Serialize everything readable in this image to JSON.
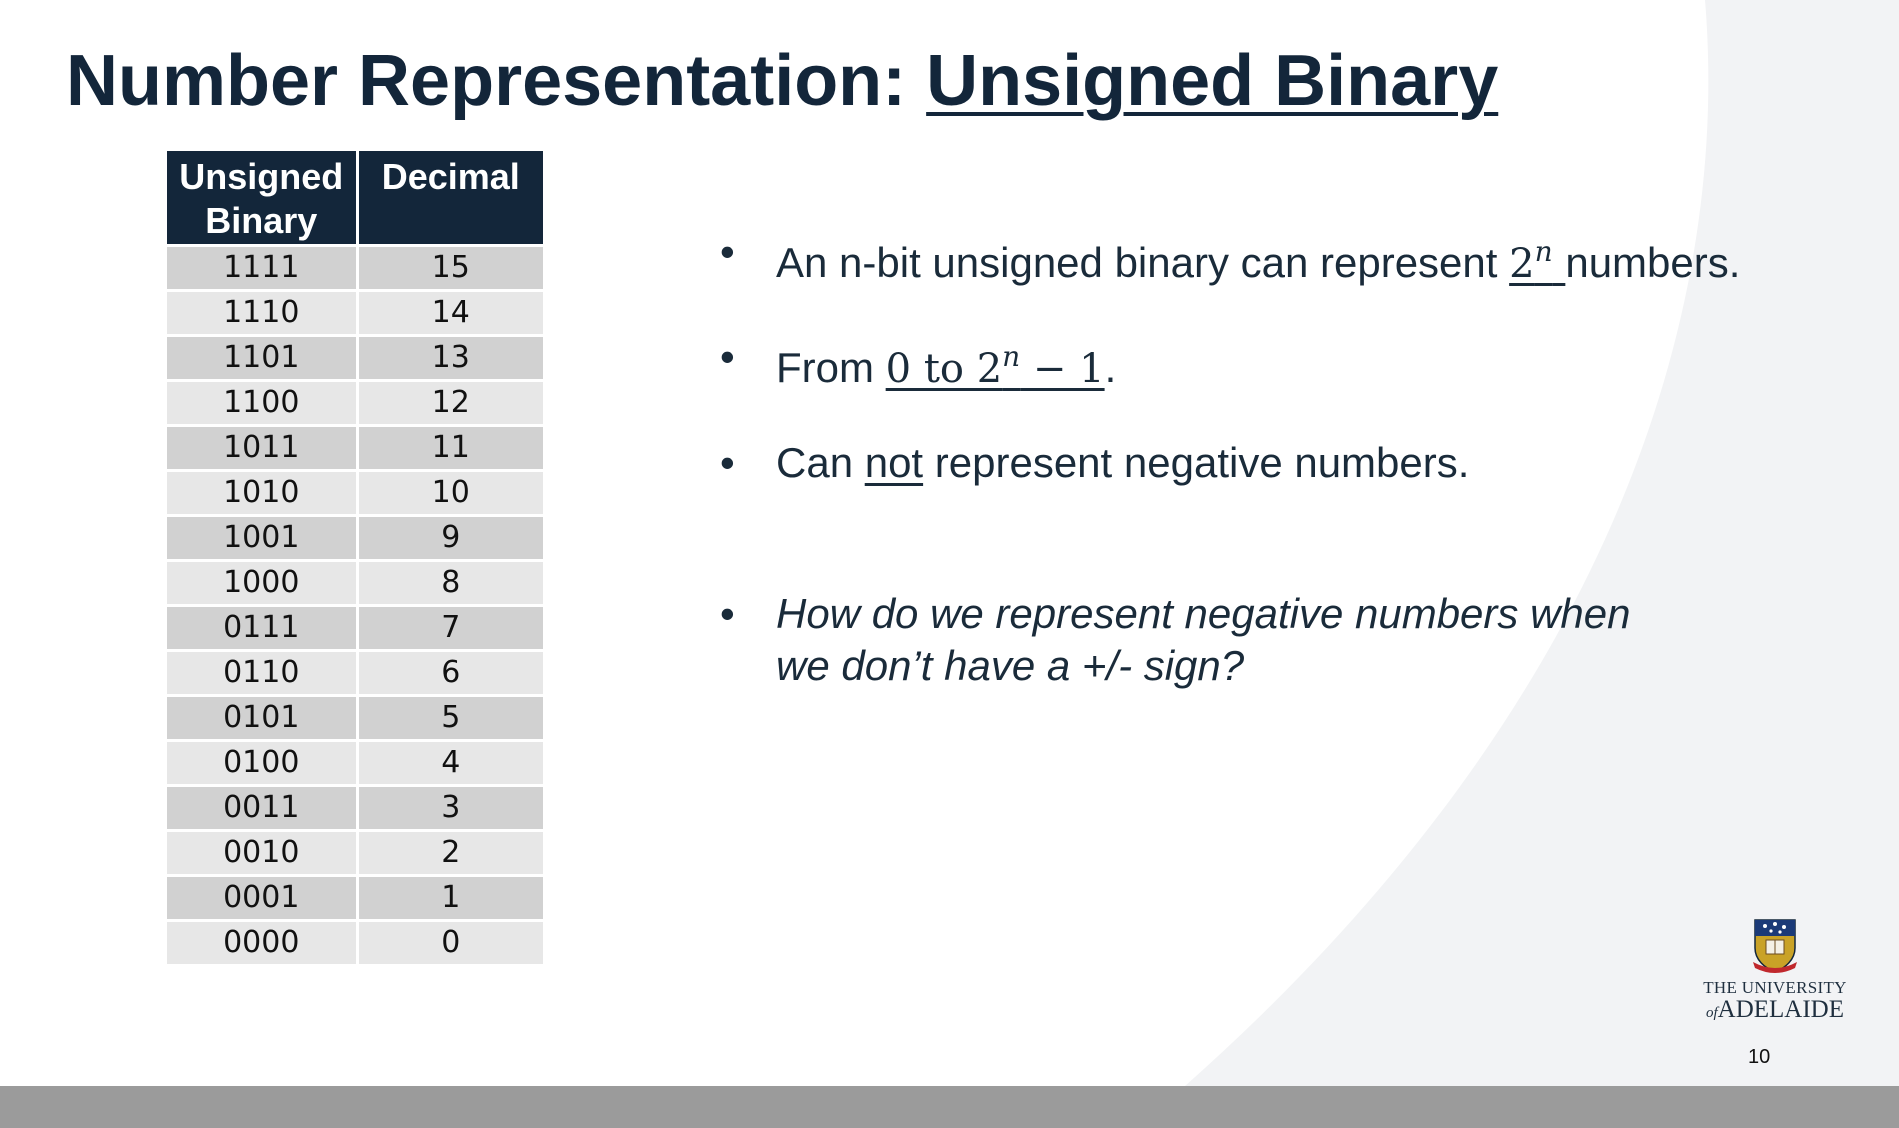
{
  "slide": {
    "title_main": "Number Representation: ",
    "title_underlined": "Unsigned Binary",
    "page_number": "10"
  },
  "table": {
    "headers": [
      "Unsigned Binary",
      "Decimal"
    ],
    "rows": [
      [
        "1111",
        "15"
      ],
      [
        "1110",
        "14"
      ],
      [
        "1101",
        "13"
      ],
      [
        "1100",
        "12"
      ],
      [
        "1011",
        "11"
      ],
      [
        "1010",
        "10"
      ],
      [
        "1001",
        "9"
      ],
      [
        "1000",
        "8"
      ],
      [
        "0111",
        "7"
      ],
      [
        "0110",
        "6"
      ],
      [
        "0101",
        "5"
      ],
      [
        "0100",
        "4"
      ],
      [
        "0011",
        "3"
      ],
      [
        "0010",
        "2"
      ],
      [
        "0001",
        "1"
      ],
      [
        "0000",
        "0"
      ]
    ]
  },
  "bullets": {
    "b1": {
      "before": "An n-bit unsigned binary can represent ",
      "math_base": "2",
      "math_sup": "n",
      "after": "numbers."
    },
    "b2": {
      "before": "From ",
      "m1": "0 to 2",
      "m_sup": "n",
      "m2": " − 1",
      "after": "."
    },
    "b3": {
      "before": "Can ",
      "underlined": "not",
      "after": " represent negative numbers."
    },
    "b4": {
      "line1": "How do we represent negative numbers when",
      "line2": "we don’t have a +/- sign?"
    },
    "marker": "•"
  },
  "logo": {
    "line1": "THE UNIVERSITY",
    "line2_of": "of",
    "line2_name": "ADELAIDE"
  },
  "colors": {
    "navy": "#13263a",
    "row_dark": "#d1d1d1",
    "row_light": "#e7e7e7",
    "bottom_bar": "#9b9b9b",
    "bg_curve": "#f2f3f5"
  }
}
